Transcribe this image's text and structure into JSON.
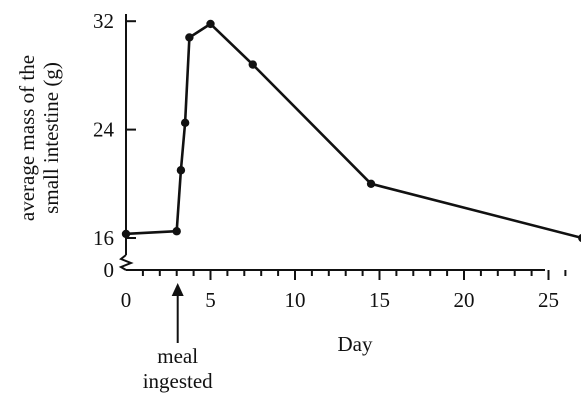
{
  "chart_data": {
    "type": "line",
    "xlabel": "Day",
    "ylabel_lines": [
      "average mass of the",
      "small intestine (g)"
    ],
    "x": [
      0,
      3,
      3.25,
      3.5,
      3.75,
      5,
      7.5,
      14.5,
      27
    ],
    "y": [
      16.3,
      16.5,
      21,
      24.5,
      30.8,
      31.8,
      28.8,
      20,
      16
    ],
    "xlim": [
      0,
      27.5
    ],
    "ylim": [
      0,
      32
    ],
    "axis_break": "y between 0 and 16",
    "x_ticks": [
      "0",
      "5",
      "10",
      "15",
      "20",
      "25"
    ],
    "y_ticks": [
      "0",
      "16",
      "24",
      "32"
    ],
    "annotation": {
      "lines": [
        "meal",
        "ingested"
      ],
      "x": 3
    },
    "grid": false,
    "legend": "none"
  }
}
